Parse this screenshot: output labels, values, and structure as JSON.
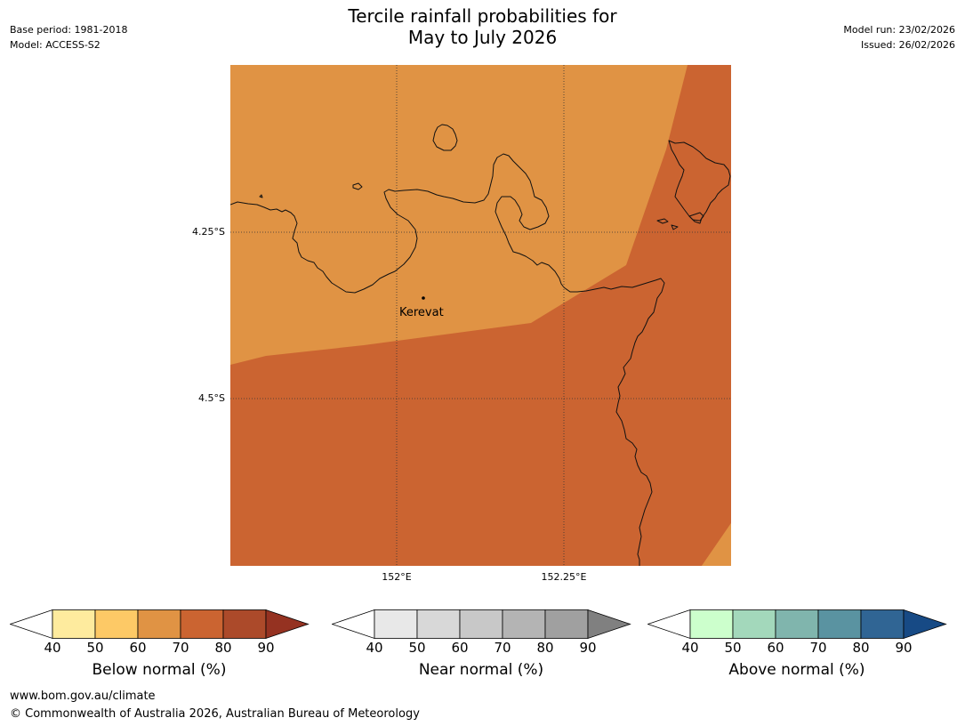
{
  "title": {
    "line1": "Tercile rainfall probabilities for",
    "line2": "May to July 2026"
  },
  "meta": {
    "base_period": "Base period: 1981-2018",
    "model": "Model: ACCESS-S2",
    "model_run": "Model run: 23/02/2026",
    "issued": "Issued: 26/02/2026"
  },
  "map": {
    "lat_labels": [
      "4.25°S",
      "4.5°S"
    ],
    "lon_labels": [
      "152°E",
      "152.25°E"
    ],
    "place": {
      "name": "Kerevat",
      "lon": 152.04,
      "lat": -4.35
    },
    "fill_colors": {
      "light": "#e09344",
      "dark": "#cb6431"
    },
    "coastline_color": "#111111",
    "gridline_style": "dotted"
  },
  "colorbars": [
    {
      "label": "Below normal (%)",
      "ticks": [
        "40",
        "50",
        "60",
        "70",
        "80",
        "90"
      ],
      "under_color": "#ffffff",
      "colors": [
        "#feeb9e",
        "#fdc966",
        "#e09344",
        "#cb6431",
        "#ac4a2a"
      ],
      "over_color": "#953221"
    },
    {
      "label": "Near normal (%)",
      "ticks": [
        "40",
        "50",
        "60",
        "70",
        "80",
        "90"
      ],
      "under_color": "#ffffff",
      "colors": [
        "#e8e8e8",
        "#d8d8d8",
        "#c8c8c8",
        "#b4b4b4",
        "#a0a0a0"
      ],
      "over_color": "#808080"
    },
    {
      "label": "Above normal (%)",
      "ticks": [
        "40",
        "50",
        "60",
        "70",
        "80",
        "90"
      ],
      "under_color": "#ffffff",
      "colors": [
        "#ccffcc",
        "#a3d8bb",
        "#80b5ad",
        "#5a93a1",
        "#306594"
      ],
      "over_color": "#174a85"
    }
  ],
  "footer": {
    "url": "www.bom.gov.au/climate",
    "copyright": "© Commonwealth of Australia 2026, Australian Bureau of Meteorology"
  }
}
